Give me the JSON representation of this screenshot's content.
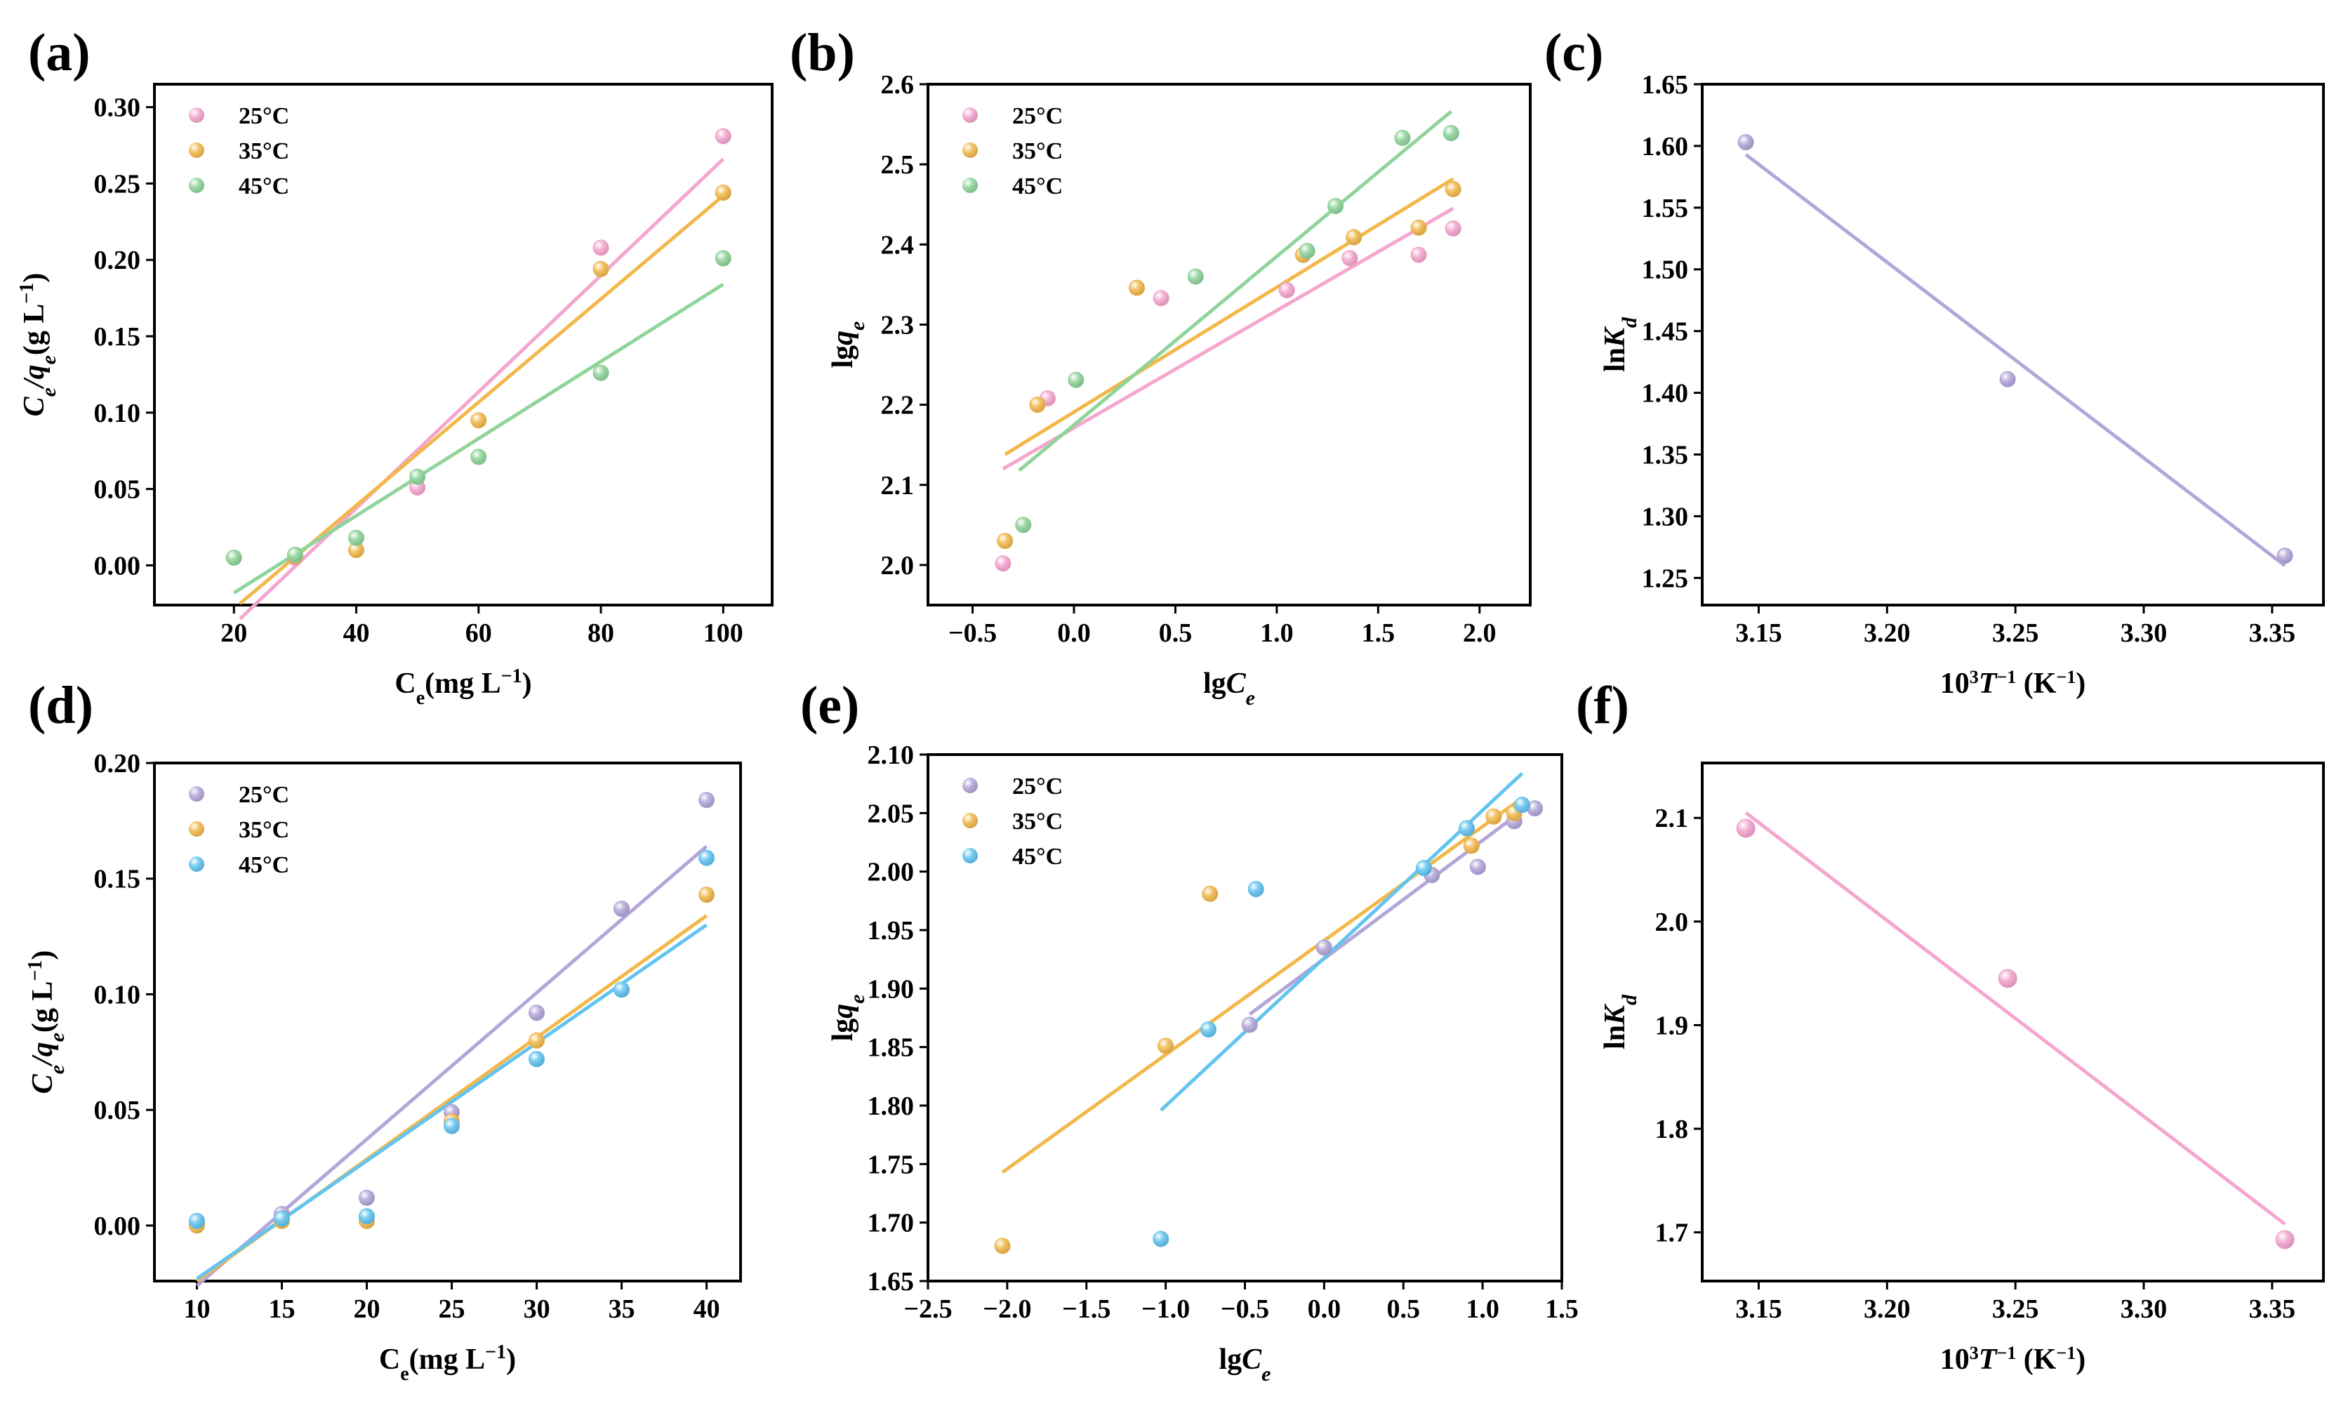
{
  "chart_data": [
    {
      "id": "a",
      "panel_label": "(a)",
      "type": "scatter",
      "xlabel": {
        "main": "C",
        "sub": "e",
        "tail": "(mg L",
        "sup": "−1",
        "end": ")"
      },
      "ylabel": "Ce/qe(g L⁻¹)",
      "xlim": [
        7,
        108
      ],
      "ylim": [
        -0.026,
        0.315
      ],
      "xticks": [
        20,
        40,
        60,
        80,
        100
      ],
      "xtick_labels": [
        "20",
        "40",
        "60",
        "80",
        "100"
      ],
      "yticks": [
        0.0,
        0.05,
        0.1,
        0.15,
        0.2,
        0.25,
        0.3
      ],
      "ytick_labels": [
        "0.00",
        "0.05",
        "0.10",
        "0.15",
        "0.20",
        "0.25",
        "0.30"
      ],
      "legend_position": "top-left",
      "series": [
        {
          "name": "25°C",
          "color": "#f4a6cf",
          "points": [
            [
              30,
              0.005
            ],
            [
              50,
              0.051
            ],
            [
              80,
              0.208
            ],
            [
              100,
              0.281
            ]
          ],
          "fit": [
            [
              21,
              -0.035
            ],
            [
              100,
              0.266
            ]
          ]
        },
        {
          "name": "35°C",
          "color": "#f2b84b",
          "points": [
            [
              30,
              0.006
            ],
            [
              40,
              0.01
            ],
            [
              60,
              0.095
            ],
            [
              80,
              0.194
            ],
            [
              100,
              0.244
            ]
          ],
          "fit": [
            [
              21,
              -0.025
            ],
            [
              100,
              0.242
            ]
          ]
        },
        {
          "name": "45°C",
          "color": "#8fd49a",
          "points": [
            [
              20,
              0.005
            ],
            [
              30,
              0.007
            ],
            [
              40,
              0.018
            ],
            [
              50,
              0.058
            ],
            [
              60,
              0.071
            ],
            [
              80,
              0.126
            ],
            [
              100,
              0.201
            ]
          ],
          "fit": [
            [
              20,
              -0.018
            ],
            [
              100,
              0.184
            ]
          ]
        }
      ]
    },
    {
      "id": "b",
      "panel_label": "(b)",
      "type": "scatter",
      "xlabel": {
        "main": "lg",
        "ital": "C",
        "sub": "e"
      },
      "ylabel": "lgqe",
      "xlim": [
        -0.72,
        2.25
      ],
      "ylim": [
        1.95,
        2.6
      ],
      "xticks": [
        -0.5,
        0.0,
        0.5,
        1.0,
        1.5,
        2.0
      ],
      "xtick_labels": [
        "−0.5",
        "0.0",
        "0.5",
        "1.0",
        "1.5",
        "2.0"
      ],
      "yticks": [
        2.0,
        2.1,
        2.2,
        2.3,
        2.4,
        2.5,
        2.6
      ],
      "ytick_labels": [
        "2.0",
        "2.1",
        "2.2",
        "2.3",
        "2.4",
        "2.5",
        "2.6"
      ],
      "legend_position": "top-left",
      "series": [
        {
          "name": "25°C",
          "color": "#f4a6cf",
          "points": [
            [
              -0.35,
              2.002
            ],
            [
              -0.13,
              2.208
            ],
            [
              0.43,
              2.333
            ],
            [
              1.05,
              2.343
            ],
            [
              1.36,
              2.383
            ],
            [
              1.7,
              2.387
            ],
            [
              1.87,
              2.42
            ]
          ],
          "fit": [
            [
              -0.35,
              2.12
            ],
            [
              1.87,
              2.445
            ]
          ]
        },
        {
          "name": "35°C",
          "color": "#f2b84b",
          "points": [
            [
              -0.34,
              2.03
            ],
            [
              -0.18,
              2.2
            ],
            [
              0.31,
              2.346
            ],
            [
              1.13,
              2.387
            ],
            [
              1.38,
              2.409
            ],
            [
              1.7,
              2.421
            ],
            [
              1.87,
              2.469
            ]
          ],
          "fit": [
            [
              -0.34,
              2.138
            ],
            [
              1.87,
              2.482
            ]
          ]
        },
        {
          "name": "45°C",
          "color": "#8fd49a",
          "points": [
            [
              -0.25,
              2.05
            ],
            [
              0.01,
              2.231
            ],
            [
              0.6,
              2.36
            ],
            [
              1.15,
              2.392
            ],
            [
              1.29,
              2.448
            ],
            [
              1.62,
              2.533
            ],
            [
              1.86,
              2.539
            ]
          ],
          "fit": [
            [
              -0.27,
              2.118
            ],
            [
              1.86,
              2.566
            ]
          ]
        }
      ]
    },
    {
      "id": "c",
      "panel_label": "(c)",
      "type": "scatter",
      "xlabel": {
        "main": "10",
        "sup": "3",
        "ital": "T",
        "sup2": "−1",
        "tail": " (K",
        "sup3": "−1",
        "end": ")"
      },
      "ylabel": "lnKd",
      "xlim": [
        3.128,
        3.37
      ],
      "ylim": [
        1.228,
        1.65
      ],
      "xticks": [
        3.15,
        3.2,
        3.25,
        3.3,
        3.35
      ],
      "xtick_labels": [
        "3.15",
        "3.20",
        "3.25",
        "3.30",
        "3.35"
      ],
      "yticks": [
        1.25,
        1.3,
        1.35,
        1.4,
        1.45,
        1.5,
        1.55,
        1.6,
        1.65
      ],
      "ytick_labels": [
        "1.25",
        "1.30",
        "1.35",
        "1.40",
        "1.45",
        "1.50",
        "1.55",
        "1.60",
        "1.65"
      ],
      "legend_position": "none",
      "series": [
        {
          "name": "",
          "color": "#b3a6d8",
          "points": [
            [
              3.145,
              1.603
            ],
            [
              3.247,
              1.411
            ],
            [
              3.355,
              1.268
            ]
          ],
          "fit": [
            [
              3.145,
              1.593
            ],
            [
              3.355,
              1.26
            ]
          ]
        }
      ]
    },
    {
      "id": "d",
      "panel_label": "(d)",
      "type": "scatter",
      "xlabel": {
        "main": "C",
        "sub": "e",
        "tail": "(mg L",
        "sup": "−1",
        "end": ")"
      },
      "ylabel": "Ce/qe(g L⁻¹)",
      "xlim": [
        7.5,
        42
      ],
      "ylim": [
        -0.024,
        0.2
      ],
      "xticks": [
        10,
        15,
        20,
        25,
        30,
        35,
        40
      ],
      "xtick_labels": [
        "10",
        "15",
        "20",
        "25",
        "30",
        "35",
        "40"
      ],
      "yticks": [
        0.0,
        0.05,
        0.1,
        0.15,
        0.2
      ],
      "ytick_labels": [
        "0.00",
        "0.05",
        "0.10",
        "0.15",
        "0.20"
      ],
      "legend_position": "top-left",
      "series": [
        {
          "name": "25°C",
          "color": "#b3a6d8",
          "points": [
            [
              10,
              0.001
            ],
            [
              15,
              0.005
            ],
            [
              20,
              0.012
            ],
            [
              25,
              0.049
            ],
            [
              30,
              0.092
            ],
            [
              35,
              0.137
            ],
            [
              40,
              0.184
            ]
          ],
          "fit": [
            [
              10,
              -0.026
            ],
            [
              40,
              0.164
            ]
          ]
        },
        {
          "name": "35°C",
          "color": "#f2b84b",
          "points": [
            [
              10,
              0.0
            ],
            [
              15,
              0.002
            ],
            [
              20,
              0.002
            ],
            [
              25,
              0.045
            ],
            [
              30,
              0.08
            ],
            [
              40,
              0.143
            ]
          ],
          "fit": [
            [
              10,
              -0.024
            ],
            [
              40,
              0.134
            ]
          ]
        },
        {
          "name": "45°C",
          "color": "#63c4f0",
          "points": [
            [
              10,
              0.002
            ],
            [
              15,
              0.003
            ],
            [
              20,
              0.004
            ],
            [
              25,
              0.043
            ],
            [
              30,
              0.072
            ],
            [
              35,
              0.102
            ],
            [
              40,
              0.159
            ]
          ],
          "fit": [
            [
              10,
              -0.023
            ],
            [
              40,
              0.13
            ]
          ]
        }
      ]
    },
    {
      "id": "e",
      "panel_label": "(e)",
      "type": "scatter",
      "xlabel": {
        "main": "lg",
        "ital": "C",
        "sub": "e"
      },
      "ylabel": "lgqe",
      "xlim": [
        -2.5,
        1.5
      ],
      "ylim": [
        1.65,
        2.1
      ],
      "xticks": [
        -2.5,
        -2.0,
        -1.5,
        -1.0,
        -0.5,
        0.0,
        0.5,
        1.0,
        1.5
      ],
      "xtick_labels": [
        "−2.5",
        "−2.0",
        "−1.5",
        "−1.0",
        "−0.5",
        "0.0",
        "0.5",
        "1.0",
        "1.5"
      ],
      "yticks": [
        1.65,
        1.7,
        1.75,
        1.8,
        1.85,
        1.9,
        1.95,
        2.0,
        2.05,
        2.1
      ],
      "ytick_labels": [
        "1.65",
        "1.70",
        "1.75",
        "1.80",
        "1.85",
        "1.90",
        "1.95",
        "2.00",
        "2.05",
        "2.10"
      ],
      "legend_position": "top-left",
      "series": [
        {
          "name": "25°C",
          "color": "#b3a6d8",
          "points": [
            [
              -0.47,
              1.869
            ],
            [
              0.0,
              1.935
            ],
            [
              0.68,
              1.997
            ],
            [
              0.97,
              2.004
            ],
            [
              1.2,
              2.043
            ],
            [
              1.33,
              2.054
            ]
          ],
          "fit": [
            [
              -0.47,
              1.878
            ],
            [
              1.33,
              2.06
            ]
          ]
        },
        {
          "name": "35°C",
          "color": "#f2b84b",
          "points": [
            [
              -2.03,
              1.68
            ],
            [
              -1.0,
              1.851
            ],
            [
              -0.72,
              1.981
            ],
            [
              0.93,
              2.022
            ],
            [
              1.07,
              2.047
            ],
            [
              1.2,
              2.05
            ]
          ],
          "fit": [
            [
              -2.03,
              1.743
            ],
            [
              1.22,
              2.06
            ]
          ]
        },
        {
          "name": "45°C",
          "color": "#63c4f0",
          "points": [
            [
              -1.03,
              1.686
            ],
            [
              -0.73,
              1.865
            ],
            [
              -0.43,
              1.985
            ],
            [
              0.63,
              2.003
            ],
            [
              0.9,
              2.037
            ],
            [
              1.25,
              2.057
            ]
          ],
          "fit": [
            [
              -1.03,
              1.796
            ],
            [
              1.25,
              2.084
            ]
          ]
        }
      ]
    },
    {
      "id": "f",
      "panel_label": "(f)",
      "type": "scatter",
      "xlabel": {
        "main": "10",
        "sup": "3",
        "ital": "T",
        "sup2": "−1",
        "tail": " (K",
        "sup3": "−1",
        "end": ")"
      },
      "ylabel": "lnKd",
      "xlim": [
        3.128,
        3.37
      ],
      "ylim": [
        1.653,
        2.153
      ],
      "xticks": [
        3.15,
        3.2,
        3.25,
        3.3,
        3.35
      ],
      "xtick_labels": [
        "3.15",
        "3.20",
        "3.25",
        "3.30",
        "3.35"
      ],
      "yticks": [
        1.7,
        1.8,
        1.9,
        2.0,
        2.1
      ],
      "ytick_labels": [
        "1.7",
        "1.8",
        "1.9",
        "2.0",
        "2.1"
      ],
      "legend_position": "none",
      "series": [
        {
          "name": "",
          "color": "#f4a6cf",
          "points": [
            [
              3.145,
              2.09
            ],
            [
              3.247,
              1.945
            ],
            [
              3.355,
              1.693
            ]
          ],
          "fit": [
            [
              3.145,
              2.105
            ],
            [
              3.355,
              1.708
            ]
          ]
        }
      ]
    }
  ]
}
